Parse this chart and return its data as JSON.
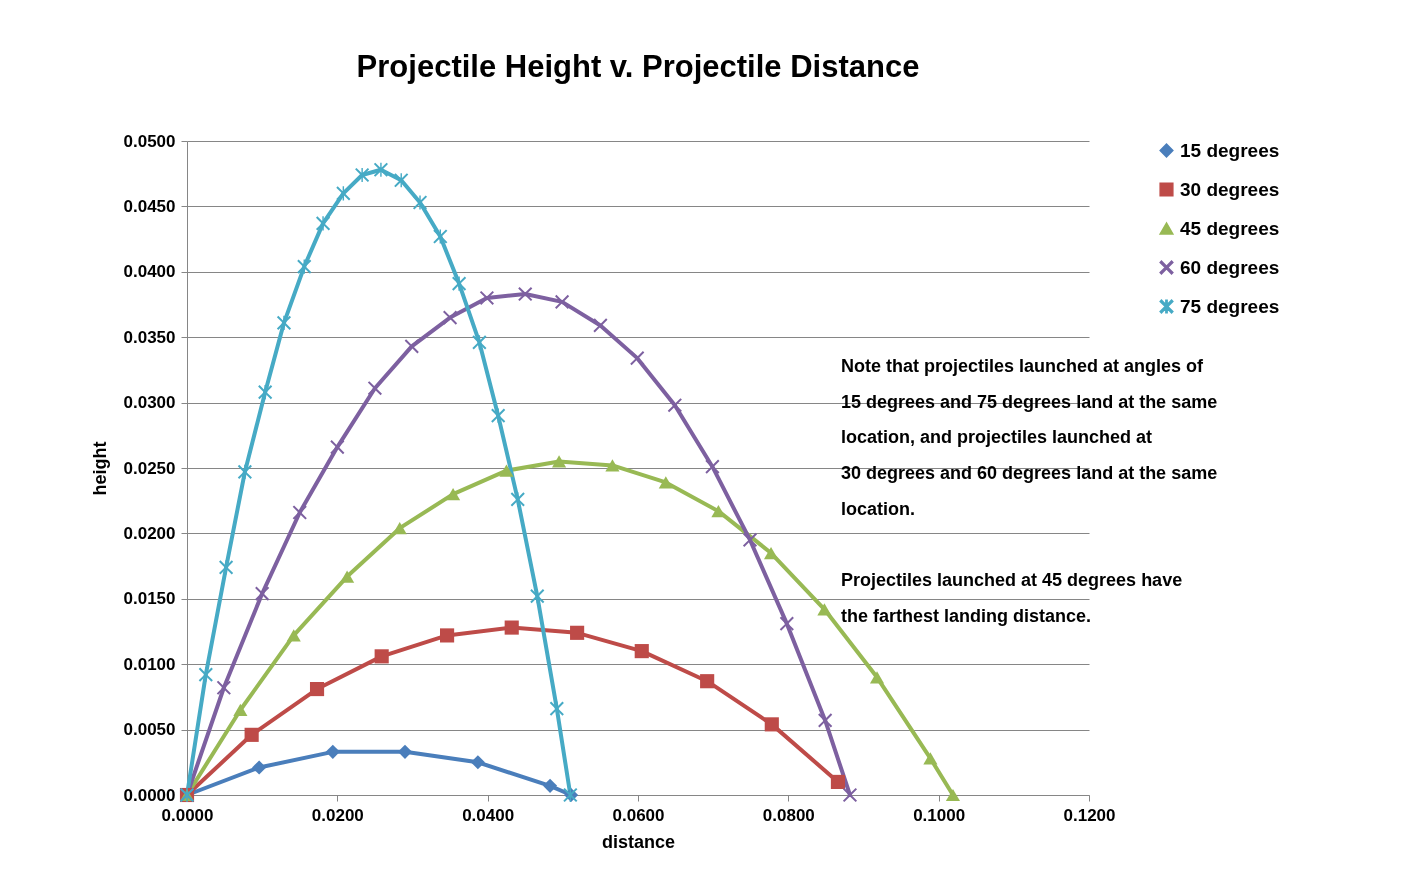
{
  "chart_data": {
    "type": "line",
    "title": "Projectile Height v. Projectile Distance",
    "xlabel": "distance",
    "ylabel": "height",
    "xlim": [
      0,
      0.12
    ],
    "xticks": [
      {
        "value": 0,
        "label": "0.0000"
      },
      {
        "value": 0.02,
        "label": "0.0200"
      },
      {
        "value": 0.04,
        "label": "0.0400"
      },
      {
        "value": 0.06,
        "label": "0.0600"
      },
      {
        "value": 0.08,
        "label": "0.0800"
      },
      {
        "value": 0.1,
        "label": "0.1000"
      },
      {
        "value": 0.12,
        "label": "0.1200"
      }
    ],
    "ylim": [
      0,
      0.05
    ],
    "yticks": [
      {
        "value": 0,
        "label": "0.0000"
      },
      {
        "value": 0.005,
        "label": "0.0050"
      },
      {
        "value": 0.01,
        "label": "0.0100"
      },
      {
        "value": 0.015,
        "label": "0.0150"
      },
      {
        "value": 0.02,
        "label": "0.0200"
      },
      {
        "value": 0.025,
        "label": "0.0250"
      },
      {
        "value": 0.03,
        "label": "0.0300"
      },
      {
        "value": 0.035,
        "label": "0.0350"
      },
      {
        "value": 0.04,
        "label": "0.0400"
      },
      {
        "value": 0.045,
        "label": "0.0450"
      },
      {
        "value": 0.05,
        "label": "0.0500"
      }
    ],
    "grid": "y",
    "legend": "top right",
    "line_style": "solid",
    "annotations": [
      "Note that projectiles  launched at  angles of\n15 degrees and 75 degrees land at the same\nlocation, and  projectiles launched at\n30 degrees and 60 degrees land at the same\nlocation.",
      "Projectiles launched at 45 degrees have\nthe farthest landing distance."
    ],
    "series": [
      {
        "name": "15 degrees",
        "color": "#4a7ebb",
        "marker": "diamond",
        "x": [
          0,
          0.0096,
          0.0194,
          0.029,
          0.0387,
          0.0483,
          0.0511
        ],
        "values": [
          0,
          0.0021,
          0.0033,
          0.0033,
          0.0025,
          0.0007,
          0
        ]
      },
      {
        "name": "30 degrees",
        "color": "#be4b48",
        "marker": "square",
        "x": [
          0,
          0.0086,
          0.0173,
          0.0259,
          0.0346,
          0.0432,
          0.0519,
          0.0605,
          0.0692,
          0.0778,
          0.0866
        ],
        "values": [
          0,
          0.0046,
          0.0081,
          0.0106,
          0.0122,
          0.0128,
          0.0124,
          0.011,
          0.0087,
          0.0054,
          0.001
        ]
      },
      {
        "name": "45 degrees",
        "color": "#98b954",
        "marker": "triangle",
        "x": [
          0,
          0.0071,
          0.0142,
          0.0213,
          0.0283,
          0.0354,
          0.0425,
          0.0495,
          0.0566,
          0.0637,
          0.0707,
          0.0777,
          0.0848,
          0.0918,
          0.0989,
          0.1019
        ],
        "values": [
          0,
          0.0065,
          0.0122,
          0.0167,
          0.0204,
          0.023,
          0.0248,
          0.0255,
          0.0252,
          0.0239,
          0.0217,
          0.0185,
          0.0142,
          0.009,
          0.0028,
          0
        ]
      },
      {
        "name": "60 degrees",
        "color": "#7d60a0",
        "marker": "cross",
        "x": [
          0,
          0.0049,
          0.01,
          0.015,
          0.02,
          0.025,
          0.0299,
          0.035,
          0.0399,
          0.045,
          0.0499,
          0.055,
          0.0599,
          0.0649,
          0.0699,
          0.0749,
          0.0798,
          0.0849,
          0.0882
        ],
        "values": [
          0,
          0.0082,
          0.0154,
          0.0216,
          0.0266,
          0.0311,
          0.0343,
          0.0365,
          0.038,
          0.0383,
          0.0377,
          0.0359,
          0.0334,
          0.0298,
          0.0251,
          0.0195,
          0.0131,
          0.0057,
          0
        ]
      },
      {
        "name": "75 degrees",
        "color": "#46aac5",
        "marker": "star",
        "x": [
          0,
          0.0025,
          0.0052,
          0.0077,
          0.0104,
          0.0129,
          0.0156,
          0.0181,
          0.0208,
          0.0233,
          0.0258,
          0.0285,
          0.031,
          0.0337,
          0.0362,
          0.0389,
          0.0414,
          0.044,
          0.0466,
          0.0492,
          0.051
        ],
        "values": [
          0,
          0.0092,
          0.0174,
          0.0247,
          0.0308,
          0.0361,
          0.0404,
          0.0437,
          0.046,
          0.0474,
          0.0478,
          0.047,
          0.0453,
          0.0427,
          0.0391,
          0.0346,
          0.029,
          0.0226,
          0.0152,
          0.0066,
          0
        ]
      }
    ]
  }
}
